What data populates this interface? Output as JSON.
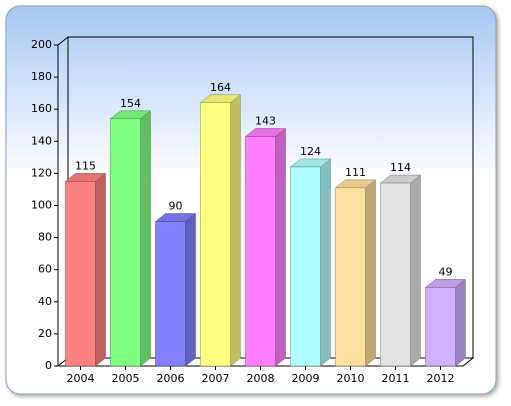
{
  "chart_data": {
    "type": "bar",
    "categories": [
      "2004",
      "2005",
      "2006",
      "2007",
      "2008",
      "2009",
      "2010",
      "2011",
      "2012"
    ],
    "values": [
      115,
      154,
      90,
      164,
      143,
      124,
      111,
      114,
      49
    ],
    "colors": [
      "#ff8080",
      "#80ff80",
      "#8080ff",
      "#ffff80",
      "#ff80ff",
      "#b0ffff",
      "#ffe0a0",
      "#e2e2e2",
      "#d0b0ff"
    ],
    "ylim": [
      0,
      200
    ],
    "yticks": [
      0,
      20,
      40,
      60,
      80,
      100,
      120,
      140,
      160,
      180,
      200
    ]
  }
}
